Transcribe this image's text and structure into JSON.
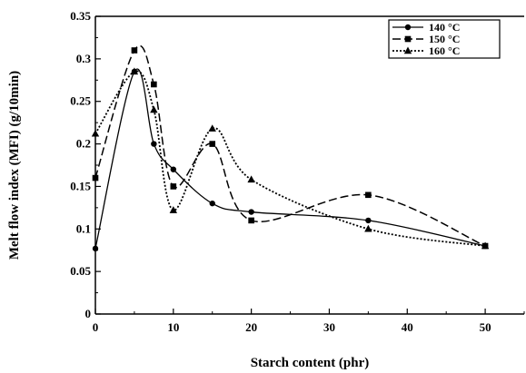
{
  "chart_data": {
    "type": "line",
    "title": "",
    "xlabel": "Starch content (phr)",
    "ylabel": "Melt flow index (MFI) (g/10min)",
    "xlim": [
      0,
      55
    ],
    "ylim": [
      0,
      0.35
    ],
    "x_ticks": [
      "0",
      "10",
      "20",
      "30",
      "40",
      "50"
    ],
    "y_ticks": [
      "0",
      "0.05",
      "0.1",
      "0.15",
      "0.2",
      "0.25",
      "0.3",
      "0.35"
    ],
    "grid": false,
    "legend_position": "top-right",
    "series": [
      {
        "name": "140 °C",
        "marker": "circle",
        "line_style": "solid",
        "x": [
          0,
          5,
          7.5,
          10,
          15,
          20,
          35,
          50
        ],
        "values": [
          0.077,
          0.285,
          0.2,
          0.17,
          0.13,
          0.12,
          0.11,
          0.08
        ]
      },
      {
        "name": "150 °C",
        "marker": "square",
        "line_style": "dashed",
        "x": [
          0,
          5,
          7.5,
          10,
          15,
          20,
          35,
          50
        ],
        "values": [
          0.16,
          0.31,
          0.27,
          0.15,
          0.2,
          0.11,
          0.14,
          0.08
        ]
      },
      {
        "name": "160 °C",
        "marker": "triangle",
        "line_style": "dotted",
        "x": [
          0,
          5,
          7.5,
          10,
          15,
          20,
          35,
          50
        ],
        "values": [
          0.212,
          0.285,
          0.24,
          0.122,
          0.218,
          0.158,
          0.1,
          0.08
        ]
      }
    ]
  }
}
